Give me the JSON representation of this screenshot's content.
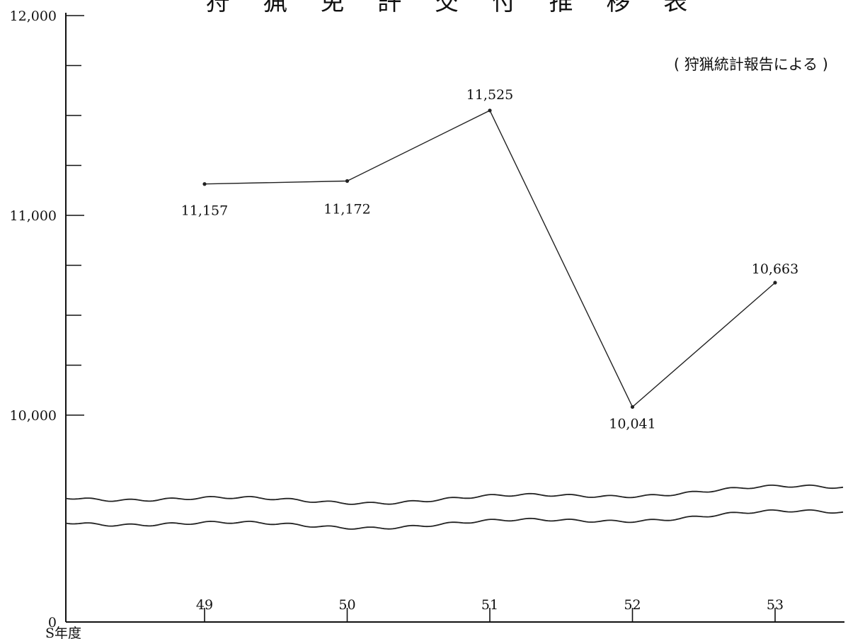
{
  "title": "狩 猟 免 許 交 付 推 移 表",
  "source_note": "( 狩猟統計報告による )",
  "chart_data": {
    "type": "line",
    "xlabel": "S年度",
    "ylabel": "",
    "categories": [
      "49",
      "50",
      "51",
      "52",
      "53"
    ],
    "series": [
      {
        "values": [
          11157,
          11172,
          11525,
          10041,
          10663
        ]
      }
    ],
    "data_labels": [
      "11,157",
      "11,172",
      "11,525",
      "10,041",
      "10,663"
    ],
    "y_tick_labels": [
      "0",
      "10,000",
      "11,000",
      "12,000"
    ],
    "y_ticks": [
      0,
      10000,
      11000,
      12000
    ],
    "y_axis_break": true,
    "ylim": [
      0,
      12000
    ],
    "grid": false,
    "legend": "none"
  }
}
